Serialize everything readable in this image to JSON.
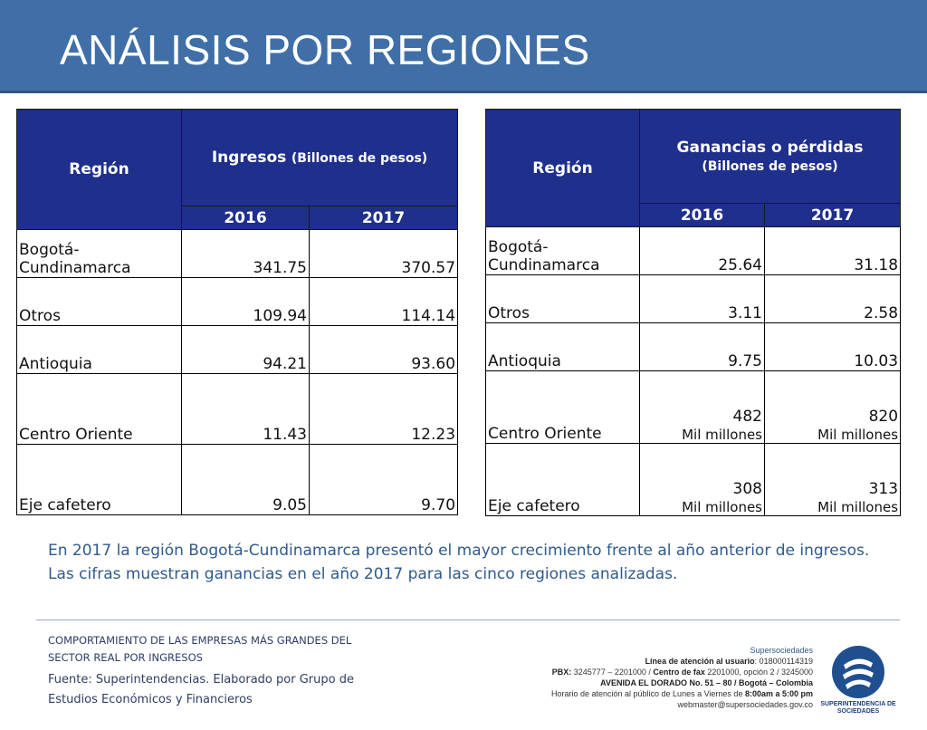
{
  "title": "ANÁLISIS POR REGIONES",
  "colors": {
    "header": "#3f6fa6",
    "table_header": "#1f2f8c",
    "text_blue": "#2f5a8c"
  },
  "table1": {
    "region_header": "Región",
    "metric_main": "Ingresos",
    "metric_sub": "(Billones de pesos)",
    "year1": "2016",
    "year2": "2017",
    "rows": [
      {
        "region": "Bogotá-Cundinamarca",
        "v2016": "341.75",
        "v2017": "370.57"
      },
      {
        "region": "Otros",
        "v2016": "109.94",
        "v2017": "114.14"
      },
      {
        "region": "Antioquia",
        "v2016": "94.21",
        "v2017": "93.60"
      },
      {
        "region": "Centro Oriente",
        "v2016": "11.43",
        "v2017": "12.23"
      },
      {
        "region": "Eje cafetero",
        "v2016": "9.05",
        "v2017": "9.70"
      }
    ]
  },
  "table2": {
    "region_header": "Región",
    "metric_main": "Ganancias o pérdidas",
    "metric_sub": "(Billones de pesos)",
    "year1": "2016",
    "year2": "2017",
    "rows": [
      {
        "region": "Bogotá-Cundinamarca",
        "v2016": "25.64",
        "v2017": "31.18"
      },
      {
        "region": "Otros",
        "v2016": "3.11",
        "v2017": "2.58"
      },
      {
        "region": "Antioquia",
        "v2016": "9.75",
        "v2017": "10.03"
      },
      {
        "region": "Centro Oriente",
        "v2016": "482",
        "u2016": "Mil millones",
        "v2017": "820",
        "u2017": "Mil millones"
      },
      {
        "region": "Eje cafetero",
        "v2016": "308",
        "u2016": "Mil millones",
        "v2017": "313",
        "u2017": "Mil millones"
      }
    ]
  },
  "notes": {
    "line1": "En 2017 la región Bogotá-Cundinamarca presentó el mayor crecimiento frente al año anterior de ingresos.",
    "line2": "Las cifras muestran ganancias en el año 2017 para las cinco regiones analizadas."
  },
  "footer": {
    "subtitle_line1": "COMPORTAMIENTO DE LAS EMPRESAS MÁS GRANDES DEL",
    "subtitle_line2": "SECTOR REAL POR INGRESOS",
    "source": "Fuente: Superintendencias. Elaborado por Grupo de Estudios Económicos y Financieros"
  },
  "contact": {
    "org": "Supersociedades",
    "line_label": "Línea de atención al usuario",
    "line_value": ": 018000114319",
    "pbx_label": "PBX:",
    "pbx_value": " 3245777 – 2201000 / ",
    "fax_label": "Centro de fax",
    "fax_value": " 2201000, opción 2 / 3245000",
    "address": "AVENIDA EL DORADO No. 51 – 80 / Bogotá – Colombia",
    "hours_prefix": "Horario de atención al público de Lunes a Viernes de ",
    "hours_value": "8:00am a 5:00 pm",
    "email": "webmaster@supersociedades.gov.co"
  },
  "logo": {
    "icon": "supersociedades-logo",
    "text": "SUPERINTENDENCIA DE SOCIEDADES"
  }
}
